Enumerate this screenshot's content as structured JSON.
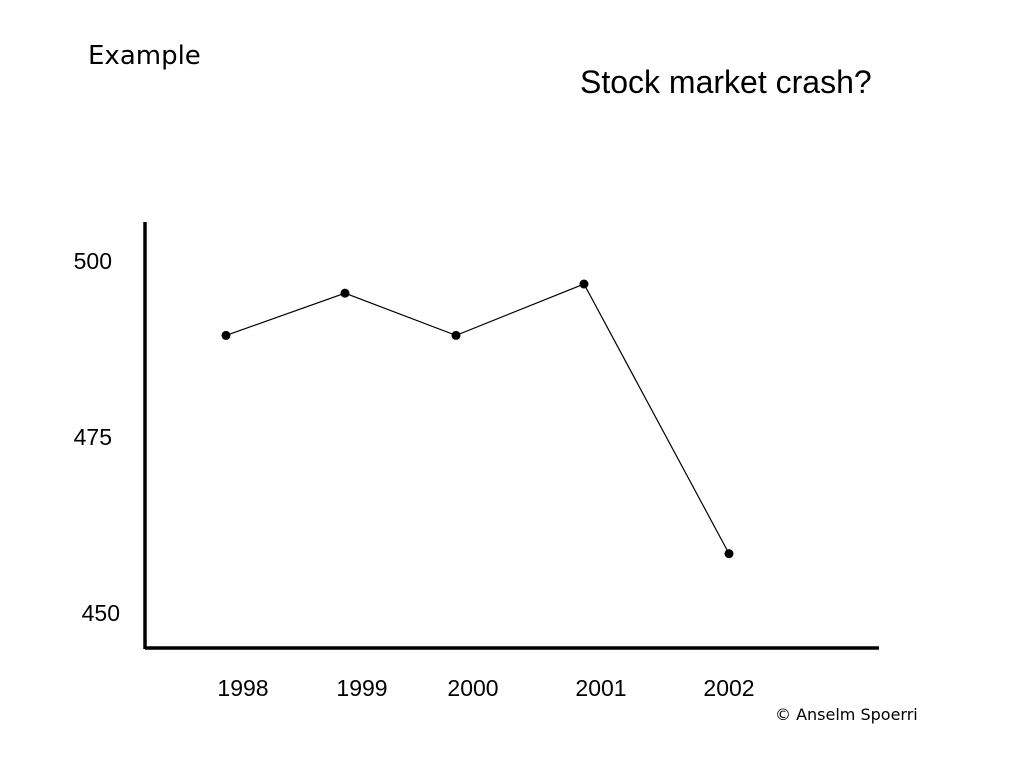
{
  "header": {
    "label": "Example"
  },
  "footer": {
    "copyright": "© Anselm Spoerri"
  },
  "chart_data": {
    "type": "line",
    "title": "Stock market crash?",
    "xlabel": "",
    "ylabel": "",
    "categories": [
      "1998",
      "1999",
      "2000",
      "2001",
      "2002"
    ],
    "yticks": [
      "450",
      "475",
      "500"
    ],
    "series": [
      {
        "values": [
          490,
          496,
          490,
          497.3,
          459
        ]
      }
    ],
    "ylim": [
      450,
      500
    ],
    "grid": false,
    "legend": "none",
    "line_color": "#000000"
  }
}
